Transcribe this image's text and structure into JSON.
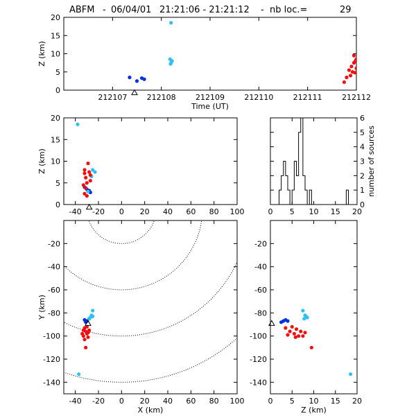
{
  "title": {
    "station": "ABFM",
    "date": "06/04/01",
    "time_range": "21:21:06 - 21:21:12",
    "nb_loc_label": "nb loc.=",
    "nb_loc": "29"
  },
  "colors": {
    "early": "#0030e0",
    "mid": "#30c0f0",
    "late": "#f01010"
  },
  "chart_data": [
    {
      "id": "time_height",
      "type": "scatter",
      "xlabel": "Time (UT)",
      "ylabel": "Z (km)",
      "xlim": [
        212106,
        212112
      ],
      "ylim": [
        0,
        20
      ],
      "xticks": [
        212107,
        212108,
        212109,
        212110,
        212111,
        212112
      ],
      "yticks": [
        0,
        5,
        10,
        15,
        20
      ],
      "station": {
        "x": 212107.45,
        "y": -0.7
      },
      "series": [
        {
          "color": "early",
          "points": [
            [
              212107.35,
              3.5
            ],
            [
              212107.5,
              2.5
            ],
            [
              212107.6,
              3.3
            ],
            [
              212107.65,
              3.0
            ]
          ]
        },
        {
          "color": "mid",
          "points": [
            [
              212108.2,
              18.5
            ],
            [
              212108.18,
              8.5
            ],
            [
              212108.22,
              8.0
            ],
            [
              212108.2,
              7.5
            ],
            [
              212108.19,
              7.2
            ]
          ]
        },
        {
          "color": "late",
          "points": [
            [
              212111.75,
              2.2
            ],
            [
              212111.8,
              3.5
            ],
            [
              212111.85,
              5.5
            ],
            [
              212111.9,
              6.5
            ],
            [
              212111.95,
              7.5
            ],
            [
              212111.95,
              9.5
            ],
            [
              212111.98,
              8.0
            ],
            [
              212112.0,
              6.0
            ],
            [
              212111.92,
              5.0
            ],
            [
              212111.88,
              4.0
            ],
            [
              212111.97,
              4.8
            ],
            [
              212112.0,
              8.5
            ]
          ]
        }
      ]
    },
    {
      "id": "x_height",
      "type": "scatter",
      "ylabel": "Z (km)",
      "xlim": [
        -50,
        100
      ],
      "ylim": [
        0,
        20
      ],
      "xticks": [
        -40,
        -20,
        0,
        20,
        40,
        60,
        80,
        100
      ],
      "yticks": [
        0,
        5,
        10,
        15,
        20
      ],
      "station": {
        "x": -28,
        "y": -0.6
      },
      "series": [
        {
          "color": "early",
          "points": [
            [
              -32,
              4.0
            ],
            [
              -30,
              3.5
            ],
            [
              -28,
              3.2
            ],
            [
              -27,
              2.8
            ]
          ]
        },
        {
          "color": "mid",
          "points": [
            [
              -38,
              18.5
            ],
            [
              -25,
              8.0
            ],
            [
              -23,
              7.5
            ],
            [
              -26,
              6.5
            ],
            [
              -29,
              3.0
            ]
          ]
        },
        {
          "color": "late",
          "points": [
            [
              -32,
              2.5
            ],
            [
              -31,
              3.8
            ],
            [
              -30,
              5.0
            ],
            [
              -31,
              6.2
            ],
            [
              -32,
              8.0
            ],
            [
              -29,
              9.5
            ],
            [
              -28,
              7.5
            ],
            [
              -27,
              5.5
            ],
            [
              -33,
              4.5
            ],
            [
              -30,
              2.0
            ],
            [
              -27,
              6.8
            ],
            [
              -32,
              7.2
            ]
          ]
        }
      ]
    },
    {
      "id": "height_histogram",
      "type": "bar",
      "ylabel": "number of sources",
      "xlim": [
        0,
        20
      ],
      "ylim": [
        0,
        6
      ],
      "xticks": [
        0,
        5,
        10,
        15,
        20
      ],
      "yticks": [
        0,
        1,
        2,
        3,
        4,
        5,
        6
      ],
      "bin_edges": [
        2.0,
        2.5,
        3.0,
        3.5,
        4.0,
        4.5,
        5.0,
        5.5,
        6.0,
        6.5,
        7.0,
        7.5,
        8.0,
        8.5,
        9.0,
        9.5,
        10.0,
        17.5,
        18.0
      ],
      "counts": [
        1,
        2,
        3,
        2,
        1,
        0,
        1,
        3,
        2,
        5,
        6,
        2,
        1,
        0,
        1,
        0,
        0,
        1
      ]
    },
    {
      "id": "plan_view",
      "type": "scatter",
      "xlabel": "X (km)",
      "ylabel": "Y (km)",
      "xlim": [
        -50,
        100
      ],
      "ylim": [
        -150,
        0
      ],
      "xticks": [
        -40,
        -20,
        0,
        20,
        40,
        60,
        80,
        100
      ],
      "yticks": [
        -140,
        -120,
        -100,
        -80,
        -60,
        -40,
        -20
      ],
      "station": {
        "x": -29,
        "y": -89
      },
      "range_rings_center": [
        0,
        10
      ],
      "range_rings_radius": [
        30,
        70,
        110,
        150
      ],
      "series": [
        {
          "color": "early",
          "points": [
            [
              -32,
              -86
            ],
            [
              -30,
              -87
            ],
            [
              -28,
              -85
            ],
            [
              -31,
              -88
            ]
          ]
        },
        {
          "color": "mid",
          "points": [
            [
              -25,
              -78
            ],
            [
              -26,
              -82
            ],
            [
              -27,
              -84
            ],
            [
              -28,
              -85
            ],
            [
              -25,
              -83
            ],
            [
              -37,
              -133
            ]
          ]
        },
        {
          "color": "late",
          "points": [
            [
              -32,
              -93
            ],
            [
              -31,
              -96
            ],
            [
              -33,
              -100
            ],
            [
              -30,
              -98
            ],
            [
              -29,
              -101
            ],
            [
              -32,
              -103
            ],
            [
              -31,
              -110
            ],
            [
              -34,
              -98
            ],
            [
              -28,
              -95
            ],
            [
              -30,
              -92
            ],
            [
              -33,
              -95
            ],
            [
              -29,
              -97
            ]
          ]
        }
      ]
    },
    {
      "id": "height_y",
      "type": "scatter",
      "xlabel": "Z (km)",
      "xlim": [
        0,
        20
      ],
      "ylim": [
        -150,
        0
      ],
      "xticks": [
        0,
        5,
        10,
        15,
        20
      ],
      "yticks": [
        -140,
        -120,
        -100,
        -80,
        -60,
        -40,
        -20
      ],
      "station": {
        "x": 0.3,
        "y": -89
      },
      "series": [
        {
          "color": "early",
          "points": [
            [
              3.0,
              -87
            ],
            [
              3.5,
              -86
            ],
            [
              2.5,
              -88
            ],
            [
              4.0,
              -87
            ]
          ]
        },
        {
          "color": "mid",
          "points": [
            [
              7.5,
              -78
            ],
            [
              8.0,
              -82
            ],
            [
              8.5,
              -84
            ],
            [
              7.8,
              -85
            ],
            [
              8.2,
              -83
            ],
            [
              18.5,
              -133
            ]
          ]
        },
        {
          "color": "late",
          "points": [
            [
              3.5,
              -93
            ],
            [
              4.5,
              -96
            ],
            [
              5.0,
              -92
            ],
            [
              5.5,
              -98
            ],
            [
              6.5,
              -100
            ],
            [
              7.0,
              -96
            ],
            [
              7.5,
              -100
            ],
            [
              6.0,
              -94
            ],
            [
              8.0,
              -97
            ],
            [
              9.5,
              -110
            ],
            [
              4.0,
              -99
            ],
            [
              5.8,
              -101
            ]
          ]
        }
      ]
    }
  ]
}
